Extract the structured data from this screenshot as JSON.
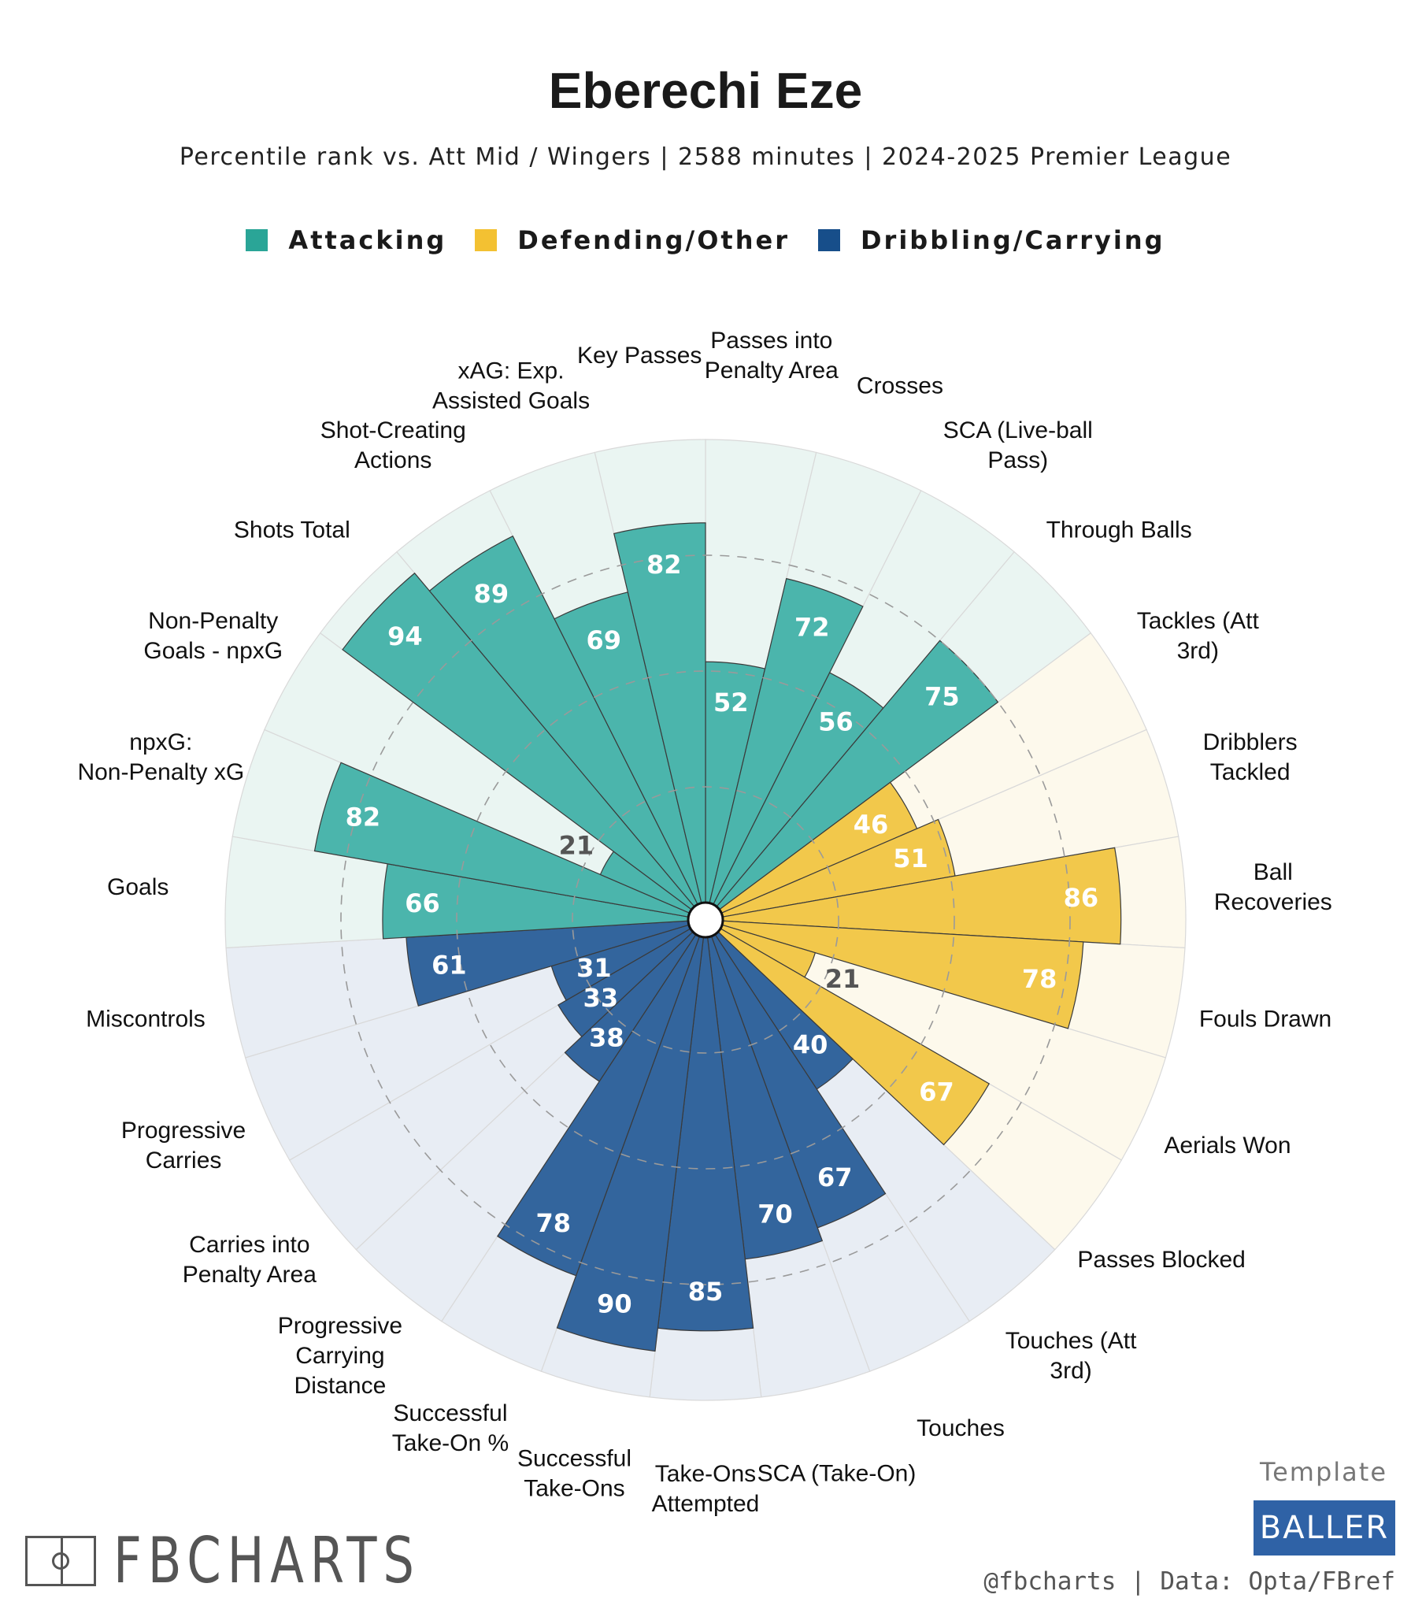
{
  "title": "Eberechi Eze",
  "subtitle": "Percentile rank vs. Att Mid / Wingers | 2588 minutes | 2024-2025 Premier League",
  "colors": {
    "attacking": "#4bb5ac",
    "defending": "#f2c84b",
    "dribbling": "#33659d",
    "attacking_bg": "#eaf5f2",
    "defending_bg": "#fdf9ec",
    "dribbling_bg": "#e8edf4",
    "value_light": "#ffffff",
    "value_dark": "#555555"
  },
  "legend": [
    {
      "label": "Attacking",
      "color": "#2aa597"
    },
    {
      "label": "Defending/Other",
      "color": "#f3c132"
    },
    {
      "label": "Dribbling/Carrying",
      "color": "#174e8a"
    }
  ],
  "chart_data": {
    "type": "polar-bar",
    "scale": [
      0,
      100
    ],
    "gridlines": [
      25,
      50,
      75
    ],
    "categories": [
      {
        "label": "Passes into Penalty Area",
        "value": 52,
        "group": "attacking"
      },
      {
        "label": "Crosses",
        "value": 72,
        "group": "attacking"
      },
      {
        "label": "SCA (Live-ball Pass)",
        "value": 56,
        "group": "attacking"
      },
      {
        "label": "Through Balls",
        "value": 75,
        "group": "attacking"
      },
      {
        "label": "Tackles (Att 3rd)",
        "value": 46,
        "group": "defending"
      },
      {
        "label": "Dribblers Tackled",
        "value": 51,
        "group": "defending"
      },
      {
        "label": "Ball Recoveries",
        "value": 86,
        "group": "defending"
      },
      {
        "label": "Fouls Drawn",
        "value": 78,
        "group": "defending"
      },
      {
        "label": "Aerials Won",
        "value": 21,
        "group": "defending"
      },
      {
        "label": "Passes Blocked",
        "value": 67,
        "group": "defending"
      },
      {
        "label": "Touches (Att 3rd)",
        "value": 40,
        "group": "dribbling"
      },
      {
        "label": "Touches",
        "value": 67,
        "group": "dribbling"
      },
      {
        "label": "SCA (Take-On)",
        "value": 70,
        "group": "dribbling"
      },
      {
        "label": "Take-Ons Attempted",
        "value": 85,
        "group": "dribbling"
      },
      {
        "label": "Successful Take-Ons",
        "value": 90,
        "group": "dribbling"
      },
      {
        "label": "Successful Take-On %",
        "value": 78,
        "group": "dribbling"
      },
      {
        "label": "Progressive Carrying Distance",
        "value": 38,
        "group": "dribbling"
      },
      {
        "label": "Carries into Penalty Area",
        "value": 33,
        "group": "dribbling"
      },
      {
        "label": "Progressive Carries",
        "value": 31,
        "group": "dribbling"
      },
      {
        "label": "Miscontrols",
        "value": 61,
        "group": "dribbling"
      },
      {
        "label": "Goals",
        "value": 66,
        "group": "attacking"
      },
      {
        "label": "npxG: Non-Penalty xG",
        "value": 82,
        "group": "attacking"
      },
      {
        "label": "Non-Penalty Goals - npxG",
        "value": 21,
        "group": "attacking"
      },
      {
        "label": "Shots Total",
        "value": 94,
        "group": "attacking"
      },
      {
        "label": "Shot-Creating Actions",
        "value": 89,
        "group": "attacking"
      },
      {
        "label": "xAG: Exp. Assisted Goals",
        "value": 69,
        "group": "attacking"
      },
      {
        "label": "Key Passes",
        "value": 82,
        "group": "attacking"
      }
    ]
  },
  "footer": {
    "brand": "FBCHARTS",
    "template_label": "Template",
    "template_badge": "BALLER",
    "credit": "@fbcharts | Data: Opta/FBref"
  }
}
